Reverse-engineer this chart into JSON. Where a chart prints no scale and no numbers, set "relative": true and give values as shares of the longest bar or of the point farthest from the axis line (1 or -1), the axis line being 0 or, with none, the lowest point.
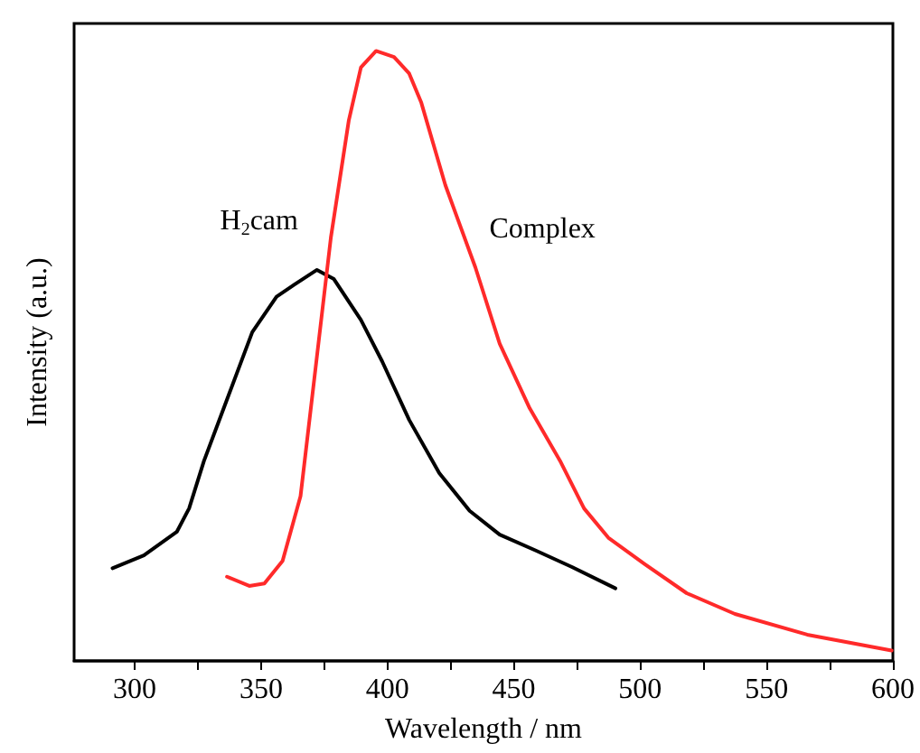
{
  "chart_data": {
    "type": "line",
    "xlabel": "Wavelength / nm",
    "ylabel": "Intensity (a.u.)",
    "relative": true,
    "xlim": [
      276,
      600
    ],
    "xticks": [
      300,
      {
        "value": 325,
        "label": null
      },
      350,
      {
        "value": 375,
        "label": null
      },
      400,
      {
        "value": 425,
        "label": null
      },
      450,
      {
        "value": 475,
        "label": null
      },
      500,
      {
        "value": 525,
        "label": null
      },
      550,
      {
        "value": 575,
        "label": null
      },
      600
    ],
    "grid": false,
    "marker": "none",
    "line_style": "solid",
    "series": [
      {
        "name": "H$_{2}$cam",
        "color": "#000000",
        "x": [
          291.2,
          303.6,
          316.7,
          321.5,
          327.4,
          337.0,
          346.5,
          356.1,
          363.2,
          372.1,
          378.8,
          389.5,
          397.9,
          408.6,
          420.5,
          432.5,
          444.4,
          458.7,
          473.0,
          490.2
        ],
        "values": [
          0.152,
          0.173,
          0.212,
          0.25,
          0.328,
          0.434,
          0.539,
          0.597,
          0.617,
          0.641,
          0.626,
          0.559,
          0.491,
          0.395,
          0.308,
          0.246,
          0.207,
          0.181,
          0.154,
          0.119
        ]
      },
      {
        "name": "Complex",
        "color": "#ff2a2a",
        "x": [
          336.5,
          345.3,
          351.3,
          358.5,
          365.6,
          371.6,
          377.6,
          384.7,
          389.5,
          395.5,
          402.6,
          408.6,
          413.4,
          422.9,
          434.8,
          444.4,
          456.3,
          468.3,
          477.8,
          487.4,
          501.7,
          518.4,
          537.5,
          566.1,
          599.5
        ],
        "values": [
          0.138,
          0.123,
          0.127,
          0.164,
          0.27,
          0.482,
          0.694,
          0.886,
          0.973,
          1,
          0.99,
          0.963,
          0.915,
          0.78,
          0.645,
          0.52,
          0.414,
          0.328,
          0.25,
          0.202,
          0.159,
          0.111,
          0.077,
          0.043,
          0.017
        ]
      }
    ]
  }
}
